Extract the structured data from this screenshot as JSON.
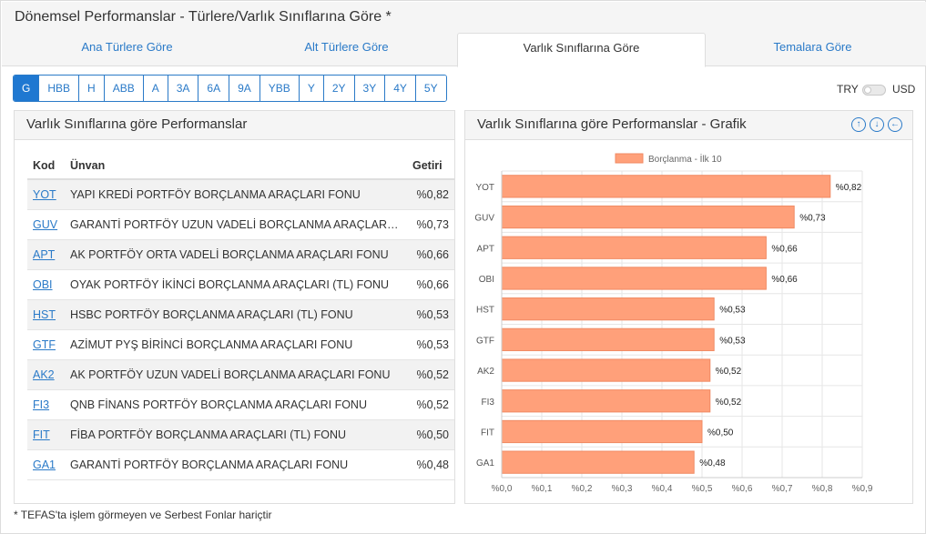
{
  "page": {
    "title": "Dönemsel Performanslar - Türlere/Varlık Sınıflarına Göre *",
    "footnote": "* TEFAS'ta işlem görmeyen ve Serbest Fonlar hariçtir"
  },
  "tabs": [
    {
      "label": "Ana Türlere Göre",
      "active": false
    },
    {
      "label": "Alt Türlere Göre",
      "active": false
    },
    {
      "label": "Varlık Sınıflarına Göre",
      "active": true
    },
    {
      "label": "Temalara Göre",
      "active": false
    }
  ],
  "periods": [
    "G",
    "HBB",
    "H",
    "ABB",
    "A",
    "3A",
    "6A",
    "9A",
    "YBB",
    "Y",
    "2Y",
    "3Y",
    "4Y",
    "5Y"
  ],
  "selected_period": "G",
  "currency": {
    "left": "TRY",
    "right": "USD",
    "selected": "TRY"
  },
  "table_panel": {
    "title": "Varlık Sınıflarına göre Performanslar",
    "headers": {
      "code": "Kod",
      "name": "Ünvan",
      "return": "Getiri"
    },
    "rows": [
      {
        "code": "YOT",
        "name": "YAPI KREDİ PORTFÖY BORÇLANMA ARAÇLARI FONU",
        "return": "%0,82"
      },
      {
        "code": "GUV",
        "name": "GARANTİ PORTFÖY UZUN VADELİ BORÇLANMA ARAÇLARI ...",
        "return": "%0,73"
      },
      {
        "code": "APT",
        "name": "AK PORTFÖY ORTA VADELİ BORÇLANMA ARAÇLARI FONU",
        "return": "%0,66"
      },
      {
        "code": "OBI",
        "name": "OYAK PORTFÖY İKİNCİ BORÇLANMA ARAÇLARI (TL) FONU",
        "return": "%0,66"
      },
      {
        "code": "HST",
        "name": "HSBC PORTFÖY BORÇLANMA ARAÇLARI (TL) FONU",
        "return": "%0,53"
      },
      {
        "code": "GTF",
        "name": "AZİMUT PYŞ BİRİNCİ BORÇLANMA ARAÇLARI FONU",
        "return": "%0,53"
      },
      {
        "code": "AK2",
        "name": "AK PORTFÖY UZUN VADELİ BORÇLANMA ARAÇLARI FONU",
        "return": "%0,52"
      },
      {
        "code": "FI3",
        "name": "QNB FİNANS PORTFÖY BORÇLANMA ARAÇLARI FONU",
        "return": "%0,52"
      },
      {
        "code": "FIT",
        "name": "FİBA PORTFÖY BORÇLANMA ARAÇLARI (TL) FONU",
        "return": "%0,50"
      },
      {
        "code": "GA1",
        "name": "GARANTİ PORTFÖY BORÇLANMA ARAÇLARI FONU",
        "return": "%0,48"
      }
    ]
  },
  "chart_panel": {
    "title": "Varlık Sınıflarına göre Performanslar - Grafik",
    "icons": [
      "arrow-up-circle-icon",
      "arrow-down-circle-icon",
      "arrow-left-circle-icon"
    ]
  },
  "colors": {
    "accent": "#1f78d1",
    "link": "#2a7ac8",
    "bar": "#ffa07a",
    "bar_border": "#f08a63"
  },
  "chart_data": {
    "type": "bar",
    "orientation": "horizontal",
    "categories": [
      "YOT",
      "GUV",
      "APT",
      "OBI",
      "HST",
      "GTF",
      "AK2",
      "FI3",
      "FIT",
      "GA1"
    ],
    "series": [
      {
        "name": "Borçlanma - İlk 10",
        "values": [
          0.82,
          0.73,
          0.66,
          0.66,
          0.53,
          0.53,
          0.52,
          0.52,
          0.5,
          0.48
        ]
      }
    ],
    "data_labels": [
      "%0,82",
      "%0,73",
      "%0,66",
      "%0,66",
      "%0,53",
      "%0,53",
      "%0,52",
      "%0,52",
      "%0,50",
      "%0,48"
    ],
    "x_ticks": [
      "%0,0",
      "%0,1",
      "%0,2",
      "%0,3",
      "%0,4",
      "%0,5",
      "%0,6",
      "%0,7",
      "%0,8",
      "%0,9"
    ],
    "xlim": [
      0,
      0.9
    ],
    "grid": true,
    "legend": "top-center"
  }
}
